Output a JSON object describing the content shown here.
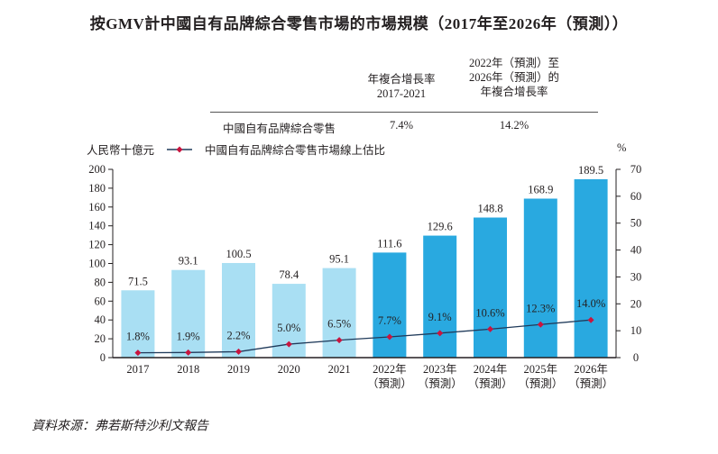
{
  "title": "按GMV計中國自有品牌綜合零售市場的市場規模（2017年至2026年（預測））",
  "cagr_table": {
    "col1_header_lines": [
      "年複合增長率",
      "2017-2021"
    ],
    "col2_header_lines": [
      "2022年（預測）至",
      "2026年（預測）的",
      "年複合增長率"
    ],
    "row_label": "中國自有品牌綜合零售",
    "col1_value": "7.4%",
    "col2_value": "14.2%"
  },
  "legend": {
    "unit_label": "人民幣十億元",
    "line_label": "中國自有品牌綜合零售市場線上估比",
    "pct_unit": "%"
  },
  "source": "資料來源：弗若斯特沙利文報告",
  "colors": {
    "bar_historical": "#a9dff3",
    "bar_forecast": "#29a9e0",
    "line": "#1f3a5a",
    "marker": "#c8153f",
    "axis": "#231f20"
  },
  "chart_data": {
    "type": "bar+line",
    "title": "按GMV計中國自有品牌綜合零售市場的市場規模（2017年至2026年（預測））",
    "categories": [
      [
        "2017"
      ],
      [
        "2018"
      ],
      [
        "2019"
      ],
      [
        "2020"
      ],
      [
        "2021"
      ],
      [
        "2022年",
        "（預測）"
      ],
      [
        "2023年",
        "（預測）"
      ],
      [
        "2024年",
        "（預測）"
      ],
      [
        "2025年",
        "（預測）"
      ],
      [
        "2026年",
        "（預測）"
      ]
    ],
    "forecast_flags": [
      false,
      false,
      false,
      false,
      false,
      true,
      true,
      true,
      true,
      true
    ],
    "series": [
      {
        "name": "市場規模（人民幣十億元）",
        "type": "bar",
        "axis": "left",
        "values": [
          71.5,
          93.1,
          100.5,
          78.4,
          95.1,
          111.6,
          129.6,
          148.8,
          168.9,
          189.5
        ],
        "labels": [
          "71.5",
          "93.1",
          "100.5",
          "78.4",
          "95.1",
          "111.6",
          "129.6",
          "148.8",
          "168.9",
          "189.5"
        ]
      },
      {
        "name": "中國自有品牌綜合零售市場線上估比",
        "type": "line",
        "axis": "right",
        "values": [
          1.8,
          1.9,
          2.2,
          5.0,
          6.5,
          7.7,
          9.1,
          10.6,
          12.3,
          14.0
        ],
        "labels": [
          "1.8%",
          "1.9%",
          "2.2%",
          "5.0%",
          "6.5%",
          "7.7%",
          "9.1%",
          "10.6%",
          "12.3%",
          "14.0%"
        ]
      }
    ],
    "ylabel_left": "人民幣十億元",
    "ylabel_right": "%",
    "ylim_left": [
      0,
      200
    ],
    "ylim_right": [
      0,
      70
    ],
    "yticks_left": [
      0,
      20,
      40,
      60,
      80,
      100,
      120,
      140,
      160,
      180,
      200
    ],
    "yticks_right": [
      0,
      10,
      20,
      30,
      40,
      50,
      60,
      70
    ],
    "grid": false,
    "legend_position": "top-left"
  }
}
